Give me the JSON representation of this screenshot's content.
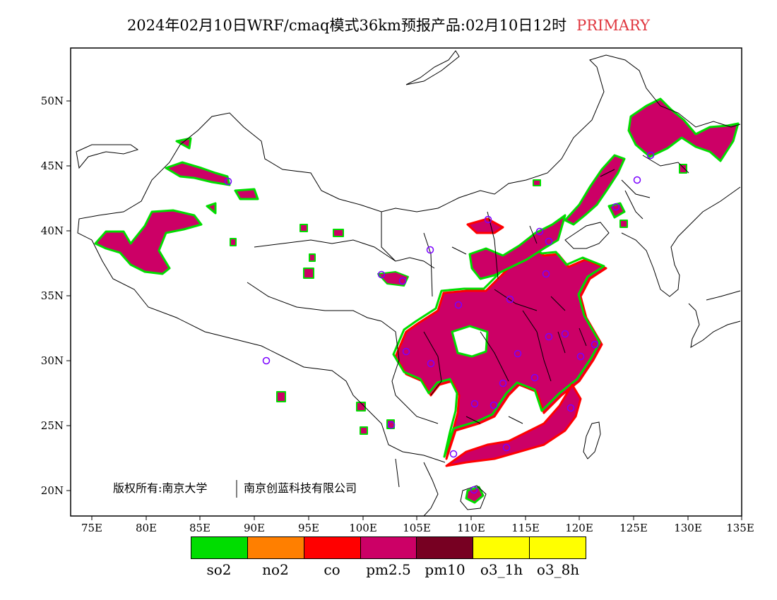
{
  "title": {
    "text": "2024年02月10日WRF/cmaq模式36km预报产品:02月10日12时",
    "tag": "PRIMARY",
    "tag_color": "#e0373f"
  },
  "axes": {
    "lat_labels": [
      "50N",
      "45N",
      "40N",
      "35N",
      "30N",
      "25N",
      "20N"
    ],
    "lon_labels": [
      "75E",
      "80E",
      "85E",
      "90E",
      "95E",
      "100E",
      "105E",
      "110E",
      "115E",
      "120E",
      "125E",
      "130E",
      "135E"
    ]
  },
  "copyright": {
    "left": "版权所有:南京大学",
    "right": "南京创蓝科技有限公司"
  },
  "legend": {
    "items": [
      {
        "label": "so2",
        "color": "#00dd00"
      },
      {
        "label": "no2",
        "color": "#ff7f00"
      },
      {
        "label": "co",
        "color": "#ff0000"
      },
      {
        "label": "pm2.5",
        "color": "#cc0066"
      },
      {
        "label": "pm10",
        "color": "#770022"
      },
      {
        "label": "o3_1h",
        "color": "#ffff00"
      },
      {
        "label": "o3_8h",
        "color": "#ffff00"
      }
    ]
  },
  "map_colors": {
    "primary_pollutant": "#cc0066",
    "edge_red": "#ff0000",
    "edge_green": "#00dd00",
    "station_marker": "#7a00ff"
  }
}
